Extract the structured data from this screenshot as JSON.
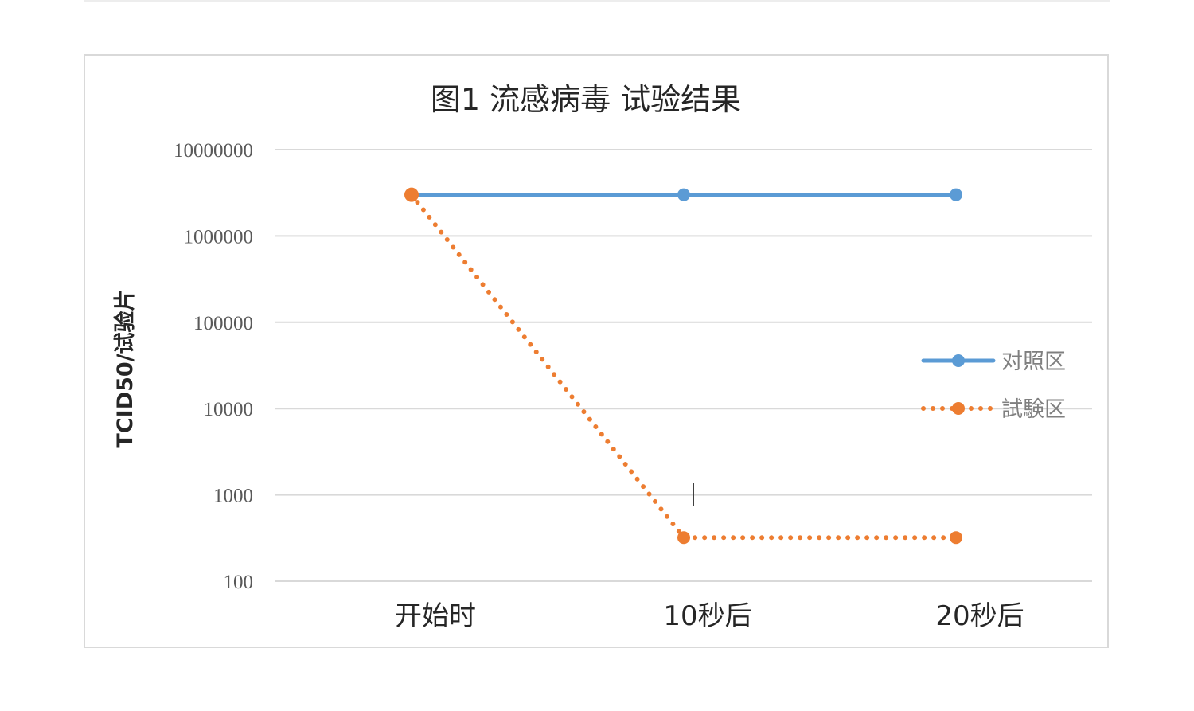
{
  "chart_data": {
    "type": "line",
    "title": "图1 流感病毒 试验结果",
    "xlabel": "",
    "ylabel": "TCID50/试验片",
    "y_scale": "log",
    "ylim": [
      100,
      10000000
    ],
    "y_ticks": [
      "10000000",
      "1000000",
      "100000",
      "10000",
      "1000",
      "100"
    ],
    "categories": [
      "开始时",
      "10秒后",
      "20秒后"
    ],
    "series": [
      {
        "name": "对照区",
        "color": "#5b9bd5",
        "line_style": "solid",
        "values": [
          3000000,
          3000000,
          3000000
        ]
      },
      {
        "name": "試験区",
        "color": "#ed7d31",
        "line_style": "dotted",
        "values": [
          3000000,
          320,
          320
        ]
      }
    ],
    "grid": true,
    "legend_position": "right"
  }
}
